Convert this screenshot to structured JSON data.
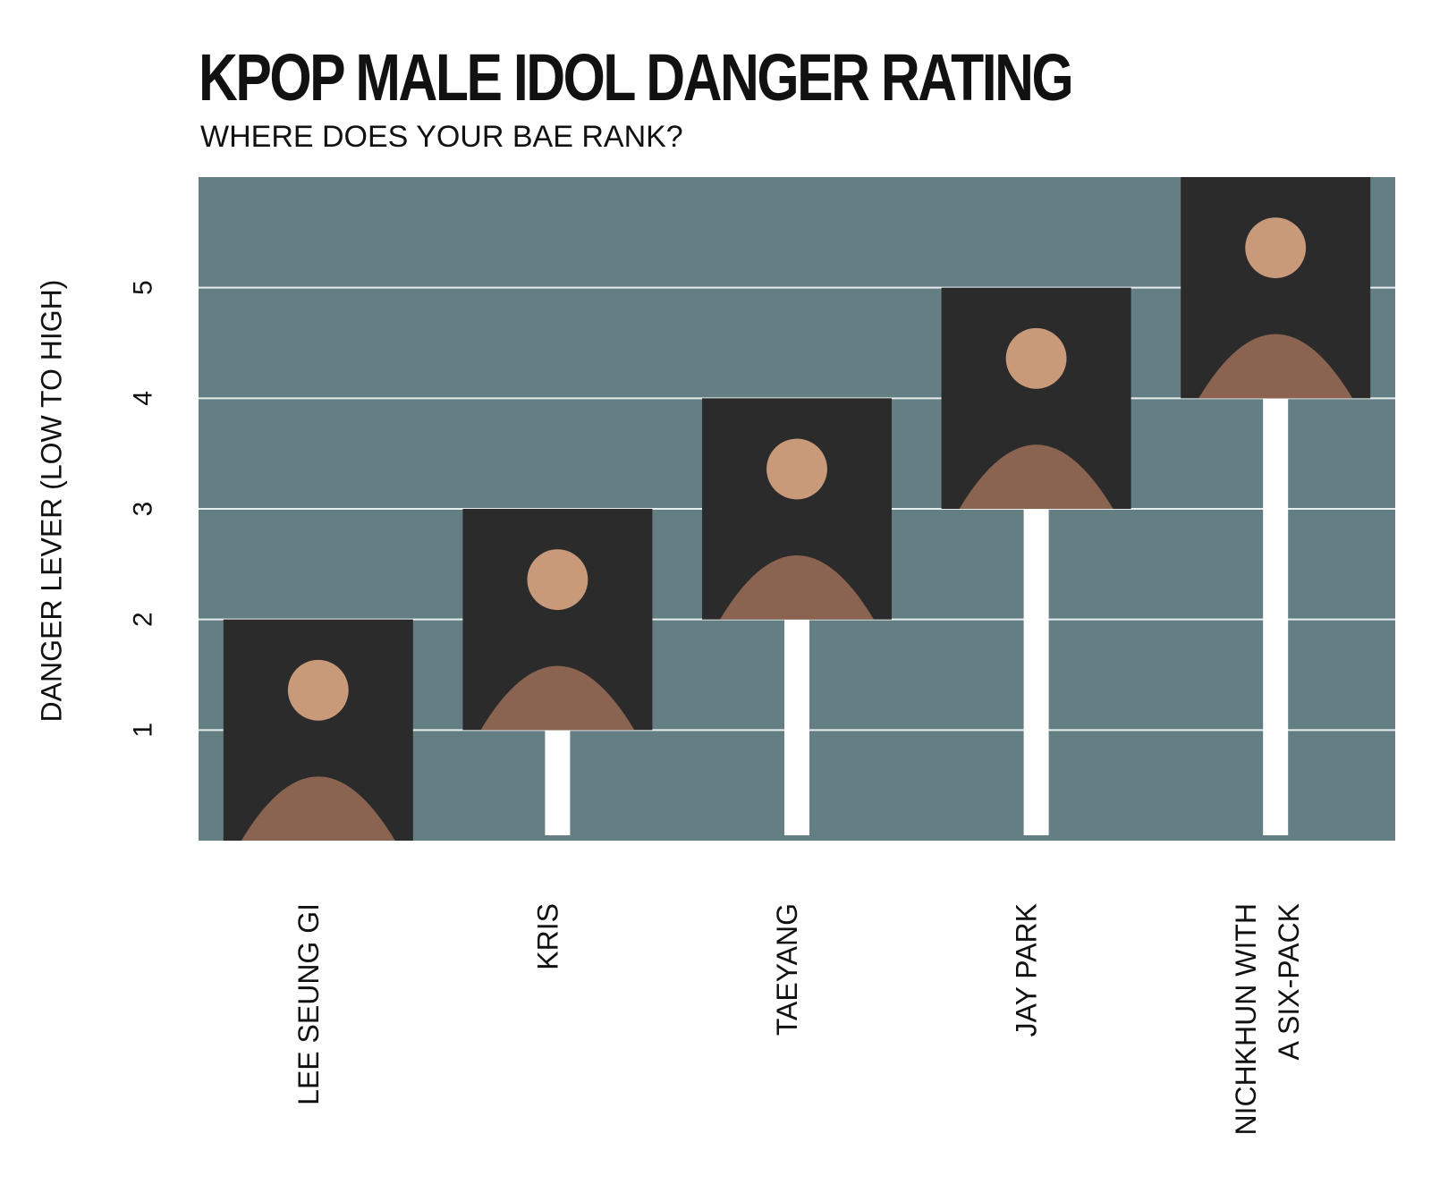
{
  "chart_data": {
    "type": "bar",
    "title": "KPOP MALE IDOL DANGER RATING",
    "subtitle": "WHERE DOES YOUR BAE RANK?",
    "ylabel": "DANGER LEVER (LOW TO HIGH)",
    "xlabel": "",
    "ylim": [
      0,
      6
    ],
    "yticks": [
      1,
      2,
      3,
      4,
      5
    ],
    "grid": true,
    "categories": [
      "LEE SEUNG GI",
      "KRIS",
      "TAEYANG",
      "JAY PARK",
      "NICHKHUN WITH A SIX-PACK"
    ],
    "category_lines": [
      [
        "LEE SEUNG GI"
      ],
      [
        "KRIS"
      ],
      [
        "TAEYANG"
      ],
      [
        "JAY PARK"
      ],
      [
        "NICHKHUN WITH",
        "A SIX-PACK"
      ]
    ],
    "values": [
      0,
      1,
      2,
      3,
      4
    ],
    "photo_top_values": [
      2,
      3,
      4,
      5,
      6
    ],
    "colors": {
      "plot_background": "#637f83",
      "gridline": "#e8eeee",
      "bar": "#ffffff",
      "photo_frame": "#2b2b2b"
    }
  }
}
